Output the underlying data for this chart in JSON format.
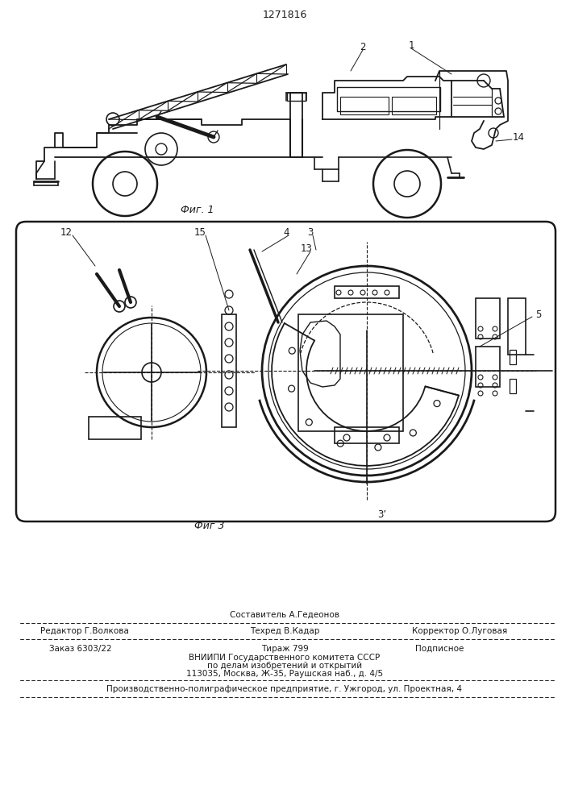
{
  "patent_number": "1271816",
  "fig1_caption": "Фиг. 1",
  "fig3_caption": "Фиг 3",
  "bg_color": "#ffffff",
  "line_color": "#1a1a1a",
  "text_color": "#1a1a1a",
  "footer": {
    "sestavitel": "Составитель А.Гедеонов",
    "redaktor": "Редактор Г.Волкова",
    "tehred": "Техред В.Кадар",
    "korrektor": "Корректор О.Луговая",
    "zakaz": "Заказ 6303/22",
    "tirazh": "Тираж 799",
    "podpisnoe": "Подписное",
    "vniipи": "ВНИИПИ Государственного комитета СССР",
    "po_delam": "по делам изобретений и открытий",
    "address": "113035, Москва, Ж-35, Раушская наб., д. 4/5",
    "factory": "Производственно-полиграфическое предприятие, г. Ужгород, ул. Проектная, 4"
  }
}
